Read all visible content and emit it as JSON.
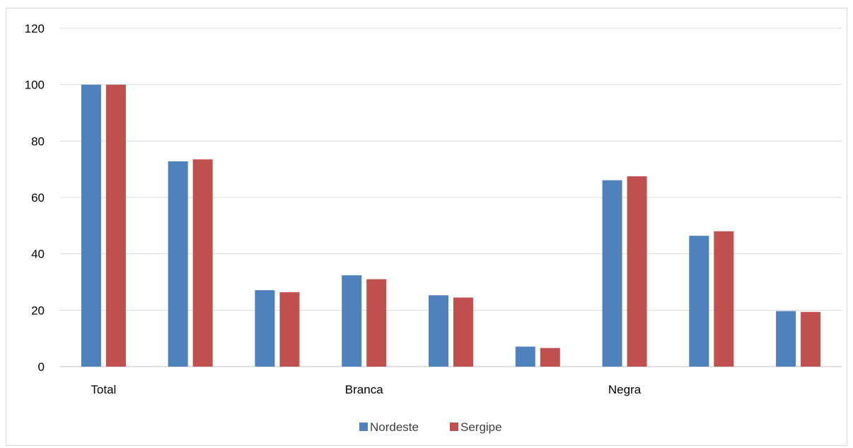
{
  "chart_data": {
    "type": "bar",
    "categories": [
      "Total",
      "",
      "",
      "Branca",
      "",
      "",
      "Negra",
      "",
      ""
    ],
    "series": [
      {
        "name": "Nordeste",
        "color": "#4f81bd",
        "values": [
          100,
          72.8,
          27.1,
          32.4,
          25.3,
          7.1,
          66.1,
          46.4,
          19.7
        ]
      },
      {
        "name": "Sergipe",
        "color": "#c0504d",
        "values": [
          100,
          73.5,
          26.4,
          31.0,
          24.5,
          6.6,
          67.5,
          48.0,
          19.4
        ]
      }
    ],
    "ylim": [
      0,
      120
    ],
    "yticks": [
      0,
      20,
      40,
      60,
      80,
      100,
      120
    ],
    "grid": true,
    "legend_position": "bottom"
  }
}
